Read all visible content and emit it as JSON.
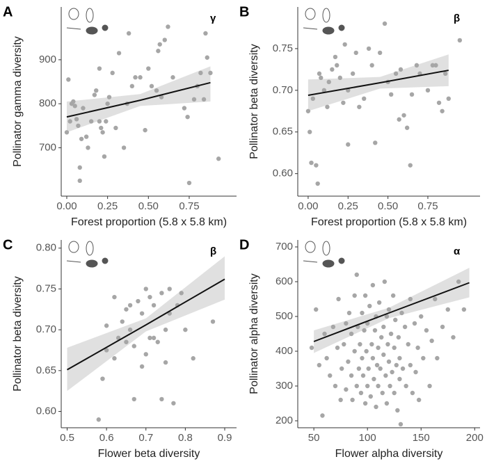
{
  "chart_data": [
    {
      "type": "scatter",
      "panel": "A",
      "annotation": "γ",
      "xlabel": "Forest proportion (5.8 x 5.8 km)",
      "ylabel": "Pollinator gamma diversity",
      "color": "#a6a6a6",
      "xlim": [
        -0.034,
        1.04
      ],
      "ylim": [
        590,
        1020
      ],
      "xticks": [
        {
          "value": 0,
          "label": "0.00"
        },
        0.25,
        {
          "value": 0.5,
          "label": "0.50"
        },
        0.75
      ],
      "yticks": [
        700,
        800,
        900
      ],
      "x": [
        0.0,
        0.01,
        0.02,
        0.03,
        0.04,
        0.05,
        0.06,
        0.07,
        0.08,
        0.08,
        0.09,
        0.1,
        0.12,
        0.13,
        0.15,
        0.17,
        0.18,
        0.2,
        0.2,
        0.21,
        0.22,
        0.23,
        0.24,
        0.25,
        0.26,
        0.28,
        0.3,
        0.32,
        0.35,
        0.37,
        0.38,
        0.4,
        0.42,
        0.45,
        0.48,
        0.5,
        0.52,
        0.55,
        0.56,
        0.57,
        0.58,
        0.6,
        0.62,
        0.65,
        0.72,
        0.74,
        0.75,
        0.78,
        0.8,
        0.82,
        0.84,
        0.85,
        0.86,
        0.88,
        0.93
      ],
      "values": [
        735,
        855,
        760,
        800,
        805,
        795,
        765,
        750,
        625,
        655,
        720,
        790,
        725,
        700,
        760,
        820,
        830,
        880,
        760,
        745,
        735,
        680,
        760,
        800,
        815,
        870,
        745,
        915,
        700,
        800,
        960,
        840,
        860,
        860,
        740,
        880,
        840,
        830,
        920,
        935,
        815,
        945,
        975,
        860,
        790,
        770,
        620,
        810,
        840,
        870,
        810,
        960,
        905,
        870,
        675
      ],
      "fit": {
        "x": [
          0,
          0.45,
          0.88
        ],
        "values": [
          770,
          808,
          848
        ],
        "lower": [
          735,
          795,
          805
        ],
        "upper": [
          805,
          822,
          885
        ]
      }
    },
    {
      "type": "scatter",
      "panel": "B",
      "annotation": "β",
      "xlabel": "Forest proportion (5.8 x 5.8 km)",
      "ylabel": "Pollinator beta diversity",
      "color": "#a6a6a6",
      "xlim": [
        -0.065,
        1.077
      ],
      "ylim": [
        0.573,
        0.8
      ],
      "xticks": [
        {
          "value": 0,
          "label": "0.00"
        },
        0.25,
        {
          "value": 0.5,
          "label": "0.50"
        },
        0.75
      ],
      "yticks": [
        {
          "value": 0.6,
          "label": "0.60"
        },
        0.65,
        {
          "value": 0.7,
          "label": "0.70"
        },
        0.75
      ],
      "x": [
        0.0,
        0.01,
        0.02,
        0.03,
        0.05,
        0.06,
        0.07,
        0.08,
        0.1,
        0.12,
        0.13,
        0.15,
        0.17,
        0.18,
        0.2,
        0.22,
        0.23,
        0.25,
        0.25,
        0.28,
        0.3,
        0.32,
        0.35,
        0.38,
        0.4,
        0.42,
        0.45,
        0.48,
        0.5,
        0.52,
        0.55,
        0.57,
        0.58,
        0.6,
        0.62,
        0.64,
        0.65,
        0.68,
        0.7,
        0.75,
        0.78,
        0.8,
        0.82,
        0.84,
        0.86,
        0.88,
        0.95
      ],
      "values": [
        0.675,
        0.65,
        0.613,
        0.69,
        0.61,
        0.588,
        0.72,
        0.715,
        0.7,
        0.68,
        0.71,
        0.725,
        0.74,
        0.73,
        0.715,
        0.685,
        0.755,
        0.635,
        0.7,
        0.72,
        0.745,
        0.68,
        0.69,
        0.75,
        0.73,
        0.637,
        0.745,
        0.78,
        0.71,
        0.695,
        0.72,
        0.665,
        0.725,
        0.67,
        0.655,
        0.61,
        0.695,
        0.73,
        0.72,
        0.7,
        0.73,
        0.73,
        0.685,
        0.675,
        0.72,
        0.69,
        0.76
      ],
      "fit": {
        "x": [
          0,
          0.45,
          0.88
        ],
        "values": [
          0.694,
          0.709,
          0.724
        ],
        "lower": [
          0.675,
          0.702,
          0.705
        ],
        "upper": [
          0.713,
          0.716,
          0.743
        ]
      }
    },
    {
      "type": "scatter",
      "panel": "C",
      "annotation": "β",
      "xlabel": "Flower beta diversity",
      "ylabel": "Pollinator beta diversity",
      "color": "#a6a6a6",
      "xlim": [
        0.485,
        0.93
      ],
      "ylim": [
        0.58,
        0.81
      ],
      "xticks": [
        0.5,
        0.6,
        0.7,
        0.8,
        0.9
      ],
      "yticks": [
        {
          "value": 0.6,
          "label": "0.60"
        },
        0.65,
        {
          "value": 0.7,
          "label": "0.70"
        },
        0.75,
        {
          "value": 0.8,
          "label": "0.80"
        }
      ],
      "x": [
        0.58,
        0.59,
        0.6,
        0.6,
        0.62,
        0.63,
        0.64,
        0.65,
        0.65,
        0.66,
        0.67,
        0.67,
        0.68,
        0.69,
        0.7,
        0.7,
        0.71,
        0.72,
        0.72,
        0.73,
        0.74,
        0.75,
        0.75,
        0.76,
        0.76,
        0.77,
        0.78,
        0.8,
        0.82,
        0.87,
        0.62,
        0.69,
        0.74,
        0.66,
        0.79,
        0.71
      ],
      "values": [
        0.59,
        0.64,
        0.675,
        0.705,
        0.665,
        0.69,
        0.71,
        0.685,
        0.725,
        0.7,
        0.615,
        0.68,
        0.735,
        0.72,
        0.75,
        0.67,
        0.74,
        0.69,
        0.73,
        0.685,
        0.745,
        0.7,
        0.66,
        0.72,
        0.75,
        0.61,
        0.73,
        0.7,
        0.665,
        0.71,
        0.74,
        0.655,
        0.615,
        0.73,
        0.745,
        0.69
      ],
      "fit": {
        "x": [
          0.5,
          0.7,
          0.9
        ],
        "values": [
          0.651,
          0.706,
          0.762
        ],
        "lower": [
          0.625,
          0.698,
          0.737
        ],
        "upper": [
          0.678,
          0.714,
          0.79
        ]
      }
    },
    {
      "type": "scatter",
      "panel": "D",
      "annotation": "α",
      "xlabel": "Flower alpha diversity",
      "ylabel": "Pollinator alpha diversity",
      "color": "#a6a6a6",
      "xlim": [
        35,
        205
      ],
      "ylim": [
        180,
        720
      ],
      "xticks": [
        50,
        100,
        150,
        200
      ],
      "yticks": [
        200,
        300,
        400,
        500,
        600,
        700
      ],
      "x": [
        48,
        52,
        55,
        58,
        60,
        62,
        65,
        68,
        70,
        72,
        73,
        75,
        76,
        78,
        80,
        80,
        82,
        83,
        85,
        85,
        86,
        88,
        88,
        90,
        90,
        91,
        92,
        93,
        94,
        95,
        95,
        96,
        97,
        98,
        98,
        99,
        100,
        100,
        101,
        102,
        103,
        104,
        105,
        105,
        106,
        107,
        108,
        108,
        109,
        110,
        110,
        111,
        112,
        113,
        114,
        115,
        115,
        116,
        117,
        118,
        118,
        119,
        120,
        120,
        121,
        122,
        123,
        124,
        125,
        125,
        126,
        127,
        128,
        129,
        130,
        130,
        131,
        132,
        133,
        135,
        136,
        138,
        140,
        140,
        142,
        144,
        145,
        147,
        148,
        150,
        152,
        155,
        158,
        160,
        163,
        165,
        170,
        175,
        180,
        185,
        190
      ],
      "values": [
        410,
        520,
        360,
        215,
        450,
        380,
        330,
        470,
        300,
        410,
        550,
        260,
        350,
        420,
        480,
        290,
        370,
        510,
        330,
        450,
        260,
        400,
        560,
        300,
        620,
        470,
        350,
        420,
        280,
        510,
        380,
        330,
        460,
        250,
        560,
        400,
        300,
        480,
        350,
        530,
        270,
        420,
        380,
        590,
        320,
        460,
        240,
        500,
        360,
        410,
        300,
        540,
        350,
        440,
        280,
        390,
        470,
        600,
        330,
        500,
        250,
        420,
        370,
        520,
        300,
        450,
        340,
        560,
        280,
        410,
        490,
        360,
        230,
        440,
        320,
        380,
        190,
        510,
        350,
        470,
        300,
        420,
        550,
        360,
        280,
        480,
        340,
        410,
        260,
        500,
        380,
        460,
        300,
        430,
        550,
        380,
        470,
        520,
        440,
        600,
        520
      ],
      "fit": {
        "x": [
          50,
          120,
          195
        ],
        "values": [
          428,
          510,
          597
        ],
        "lower": [
          395,
          495,
          555
        ],
        "upper": [
          460,
          525,
          640
        ]
      }
    }
  ]
}
